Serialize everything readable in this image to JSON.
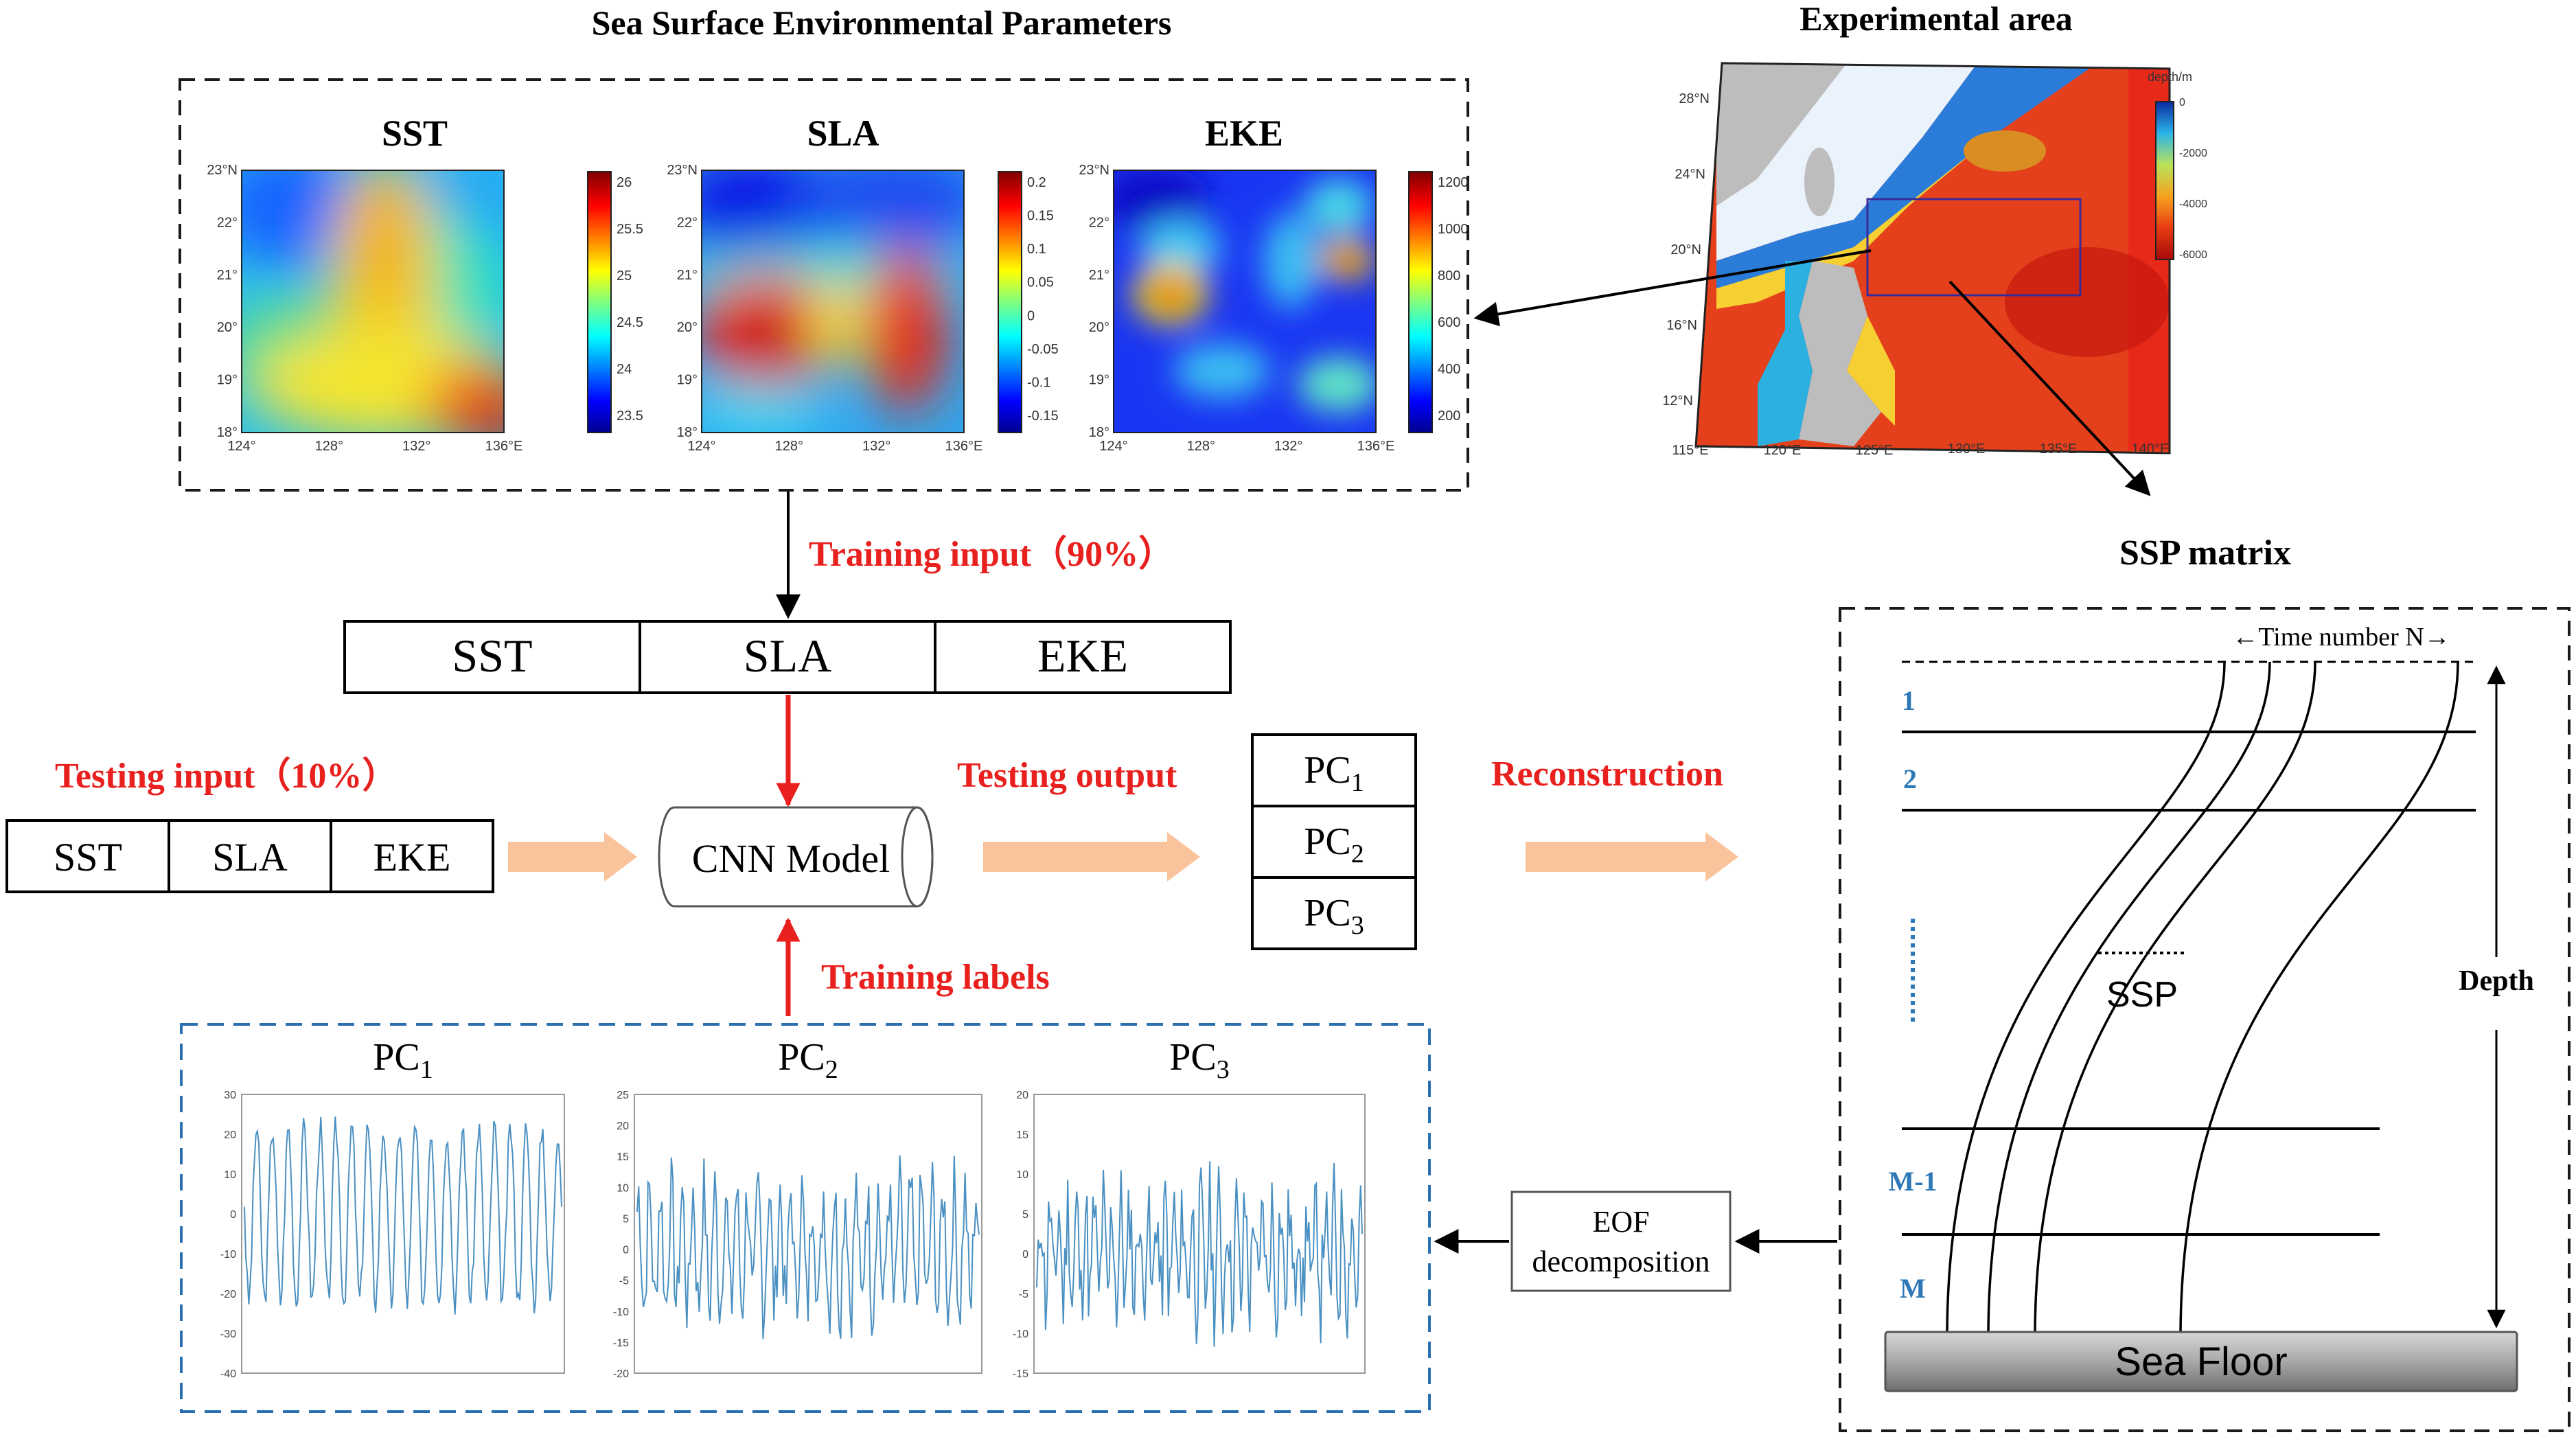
{
  "colors": {
    "red_text": "#e8201e",
    "blue_label": "#2f78b7",
    "arrow_orange": "#f9c39c",
    "dashed_black": "#1a1a1a",
    "dashed_blue": "#2a6fb0",
    "plot_line": "#4a90c2"
  },
  "titles": {
    "sea_surface": "Sea Surface Environmental Parameters",
    "experimental_area": "Experimental area",
    "ssp_matrix": "SSP matrix"
  },
  "maps": [
    {
      "name": "SST",
      "yticks": [
        "23°N",
        "22°",
        "21°",
        "20°",
        "19°",
        "18°"
      ],
      "xticks": [
        "124°",
        "128°",
        "132°",
        "136°E"
      ],
      "cbar": [
        "26",
        "25.5",
        "25",
        "24.5",
        "24",
        "23.5"
      ]
    },
    {
      "name": "SLA",
      "yticks": [
        "23°N",
        "22°",
        "21°",
        "20°",
        "19°",
        "18°"
      ],
      "xticks": [
        "124°",
        "128°",
        "132°",
        "136°E"
      ],
      "cbar": [
        "0.2",
        "0.15",
        "0.1",
        "0.05",
        "0",
        "-0.05",
        "-0.1",
        "-0.15"
      ]
    },
    {
      "name": "EKE",
      "yticks": [
        "23°N",
        "22°",
        "21°",
        "20°",
        "19°",
        "18°"
      ],
      "xticks": [
        "124°",
        "128°",
        "132°",
        "136°E"
      ],
      "cbar": [
        "1200",
        "1000",
        "800",
        "600",
        "400",
        "200"
      ]
    }
  ],
  "exp_map": {
    "yticks": [
      "28°N",
      "24°N",
      "20°N",
      "16°N",
      "12°N"
    ],
    "xticks": [
      "115°E",
      "120°E",
      "125°E",
      "130°E",
      "135°E",
      "140°E"
    ],
    "cbar_title": "depth/m",
    "cbar": [
      "0",
      "-2000",
      "-4000",
      "-6000"
    ]
  },
  "flow": {
    "training_input": "Training input（90%）",
    "testing_input": "Testing input（10%）",
    "testing_output": "Testing output",
    "reconstruction": "Reconstruction",
    "training_labels": "Training labels",
    "cnn_model": "CNN Model",
    "eof_line1": "EOF",
    "eof_line2": "decomposition",
    "big_inputs": [
      "SST",
      "SLA",
      "EKE"
    ],
    "small_inputs": [
      "SST",
      "SLA",
      "EKE"
    ],
    "pc_outputs": [
      {
        "base": "PC",
        "sub": "1"
      },
      {
        "base": "PC",
        "sub": "2"
      },
      {
        "base": "PC",
        "sub": "3"
      }
    ]
  },
  "pc_plots": [
    {
      "base": "PC",
      "sub": "1",
      "yticks": [
        "30",
        "20",
        "10",
        "0",
        "-10",
        "-20",
        "-30",
        "-40"
      ]
    },
    {
      "base": "PC",
      "sub": "2",
      "yticks": [
        "25",
        "20",
        "15",
        "10",
        "5",
        "0",
        "-5",
        "-10",
        "-15",
        "-20"
      ]
    },
    {
      "base": "PC",
      "sub": "3",
      "yticks": [
        "20",
        "15",
        "10",
        "5",
        "0",
        "-5",
        "-10",
        "-15"
      ]
    }
  ],
  "ssp": {
    "time_label": "←Time number N→",
    "layers": [
      "1",
      "2",
      "M-1",
      "M"
    ],
    "ssp_label": "SSP",
    "depth_label": "Depth",
    "sea_floor": "Sea Floor"
  }
}
